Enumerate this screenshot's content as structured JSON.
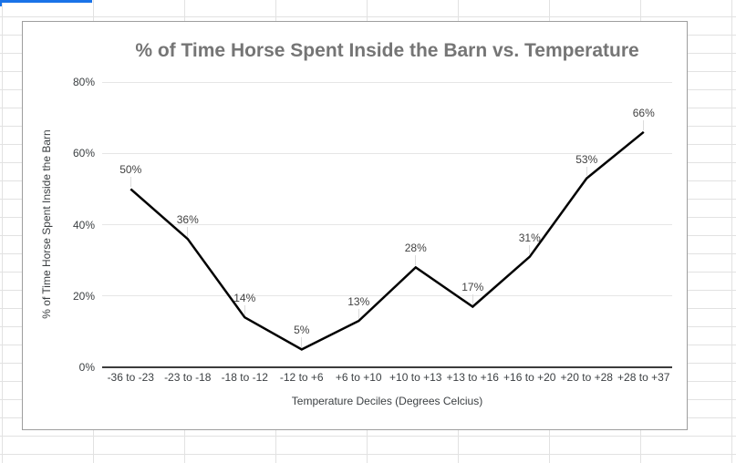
{
  "sheet": {
    "selection_color": "#1a73e8",
    "gridline_color": "#e2e2e2"
  },
  "chart_data": {
    "type": "line",
    "title": "% of Time Horse Spent Inside the Barn vs. Temperature",
    "xlabel": "Temperature Deciles (Degrees Celcius)",
    "ylabel": "% of Time Horse Spent Inside the Barn",
    "categories": [
      "-36 to -23",
      "-23 to -18",
      "-18 to -12",
      "-12 to +6",
      "+6 to +10",
      "+10 to +13",
      "+13 to +16",
      "+16 to +20",
      "+20 to +28",
      "+28 to +37"
    ],
    "values": [
      50,
      36,
      14,
      5,
      13,
      28,
      17,
      31,
      53,
      66
    ],
    "data_labels": [
      "50%",
      "36%",
      "14%",
      "5%",
      "13%",
      "28%",
      "17%",
      "31%",
      "53%",
      "66%"
    ],
    "yticks": [
      {
        "value": 0,
        "label": "0%"
      },
      {
        "value": 20,
        "label": "20%"
      },
      {
        "value": 40,
        "label": "40%"
      },
      {
        "value": 60,
        "label": "60%"
      },
      {
        "value": 80,
        "label": "80%"
      }
    ],
    "ylim": [
      0,
      80
    ],
    "grid": true,
    "legend": "none",
    "line_color": "#000000",
    "title_color": "#757575"
  }
}
